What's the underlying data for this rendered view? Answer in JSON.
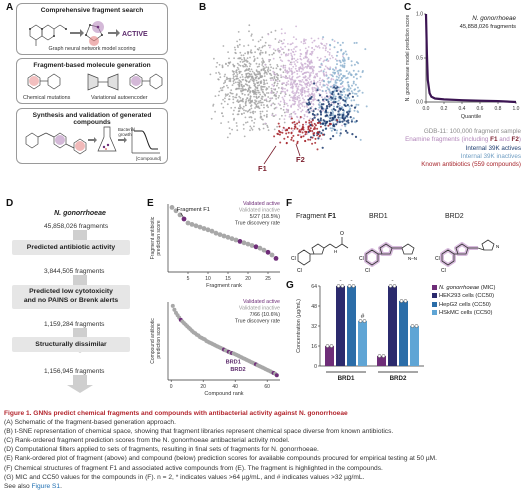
{
  "panelA": {
    "letter": "A",
    "box1_title": "Comprehensive fragment search",
    "box1_sub": "Graph neural network model scoring",
    "active_label": "ACTIVE",
    "box2_title": "Fragment-based molecule generation",
    "box2_sub1": "Chemical mutations",
    "box2_sub2": "Variational autoencoder",
    "box3_title": "Synthesis and validation of generated compounds",
    "growth_label": "Bacterial growth",
    "compound_label": "[Compound]"
  },
  "panelB": {
    "letter": "B",
    "legend": [
      {
        "label": "GDB-11: 100,000 fragment sample",
        "color": "#9b9b9b"
      },
      {
        "label_pre": "Enamine fragments (including ",
        "f1": "F1",
        "and": " and ",
        "f2": "F2",
        "post": ")",
        "color": "#c9a9cf"
      },
      {
        "label": "Internal 39K actives",
        "color": "#1c3b6e"
      },
      {
        "label": "Internal 39K inactives",
        "color": "#8fb3cf"
      },
      {
        "label": "Known antibiotics (559 compounds)",
        "color": "#a6232a"
      }
    ],
    "f1_label": "F1",
    "f2_label": "F2"
  },
  "panelC": {
    "letter": "C",
    "organism": "N. gonorrhoeae",
    "count": "45,858,026 fragments",
    "chart_data": {
      "type": "line",
      "x": [
        0.0,
        0.01,
        0.02,
        0.04,
        0.06,
        0.1,
        0.2,
        0.4,
        0.6,
        0.8,
        1.0
      ],
      "y": [
        1.0,
        0.55,
        0.25,
        0.1,
        0.06,
        0.04,
        0.03,
        0.02,
        0.015,
        0.01,
        0.0
      ],
      "xlabel": "Quantile",
      "ylabel": "N. gonorrhoeae model prediction score",
      "xticks": [
        "0.0",
        "0.2",
        "0.4",
        "0.6",
        "0.8",
        "1.0"
      ],
      "yticks": [
        "0.0",
        "0.5",
        "1.0"
      ],
      "xlim": [
        0,
        1
      ],
      "ylim": [
        0,
        1
      ],
      "color": "#3b1452"
    }
  },
  "panelD": {
    "letter": "D",
    "organism": "N. gonorrhoeae",
    "n0": "45,858,026 fragments",
    "step1": "Predicted antibiotic activity",
    "n1": "3,844,505 fragments",
    "step2_l1": "Predicted low cytotoxicity",
    "step2_l2": "and no PAINS or Brenk alerts",
    "n2": "1,159,284 fragments",
    "step3": "Structurally dissimilar",
    "n3": "1,156,945 fragments"
  },
  "panelE": {
    "letter": "E",
    "top": {
      "legend_active": "Validated active",
      "legend_inactive": "Validated inactive",
      "rate": "5/27 (18.5%)",
      "rate_label": "True discovery rate",
      "annotation": "Fragment F1",
      "chart_data": {
        "type": "scatter",
        "xlabel": "Fragment rank",
        "ylabel": "Fragment antibiotic prediction score",
        "xticks": [
          "5",
          "10",
          "15",
          "20",
          "25"
        ],
        "xlim": [
          0,
          28
        ],
        "ylim": [
          0.0,
          1.0
        ],
        "x": [
          1,
          2,
          3,
          4,
          5,
          6,
          7,
          8,
          9,
          10,
          11,
          12,
          13,
          14,
          15,
          16,
          17,
          18,
          19,
          20,
          21,
          22,
          23,
          24,
          25,
          26,
          27
        ],
        "y": [
          0.95,
          0.9,
          0.84,
          0.78,
          0.72,
          0.7,
          0.68,
          0.66,
          0.64,
          0.62,
          0.6,
          0.57,
          0.55,
          0.53,
          0.51,
          0.49,
          0.47,
          0.45,
          0.43,
          0.41,
          0.39,
          0.37,
          0.35,
          0.32,
          0.29,
          0.25,
          0.2
        ],
        "active": [
          false,
          false,
          false,
          true,
          false,
          false,
          false,
          false,
          false,
          false,
          false,
          false,
          false,
          false,
          false,
          false,
          false,
          true,
          false,
          false,
          false,
          true,
          false,
          false,
          true,
          false,
          true
        ]
      }
    },
    "bottom": {
      "legend_active": "Validated active",
      "legend_inactive": "Validated inactive",
      "rate": "7/66 (10.6%)",
      "rate_label": "True discovery rate",
      "brd1": "BRD1",
      "brd2": "BRD2",
      "chart_data": {
        "type": "scatter",
        "xlabel": "Compound rank",
        "ylabel": "Compound antibiotic prediction score",
        "xticks": [
          "0",
          "20",
          "40",
          "60"
        ],
        "xlim": [
          -2,
          68
        ],
        "ylim": [
          0.0,
          1.0
        ],
        "x": [
          1,
          2,
          3,
          4,
          5,
          6,
          7,
          8,
          9,
          10,
          11,
          12,
          13,
          14,
          15,
          16,
          17,
          18,
          19,
          20,
          21,
          22,
          23,
          24,
          25,
          26,
          27,
          28,
          29,
          30,
          31,
          32,
          33,
          34,
          35,
          36,
          37,
          38,
          39,
          40,
          41,
          42,
          43,
          44,
          45,
          46,
          47,
          48,
          49,
          50,
          51,
          52,
          53,
          54,
          55,
          56,
          57,
          58,
          59,
          60,
          61,
          62,
          63,
          64,
          65,
          66
        ],
        "y": [
          0.95,
          0.9,
          0.86,
          0.83,
          0.8,
          0.77,
          0.75,
          0.73,
          0.71,
          0.69,
          0.67,
          0.65,
          0.63,
          0.61,
          0.6,
          0.58,
          0.57,
          0.55,
          0.54,
          0.53,
          0.52,
          0.5,
          0.49,
          0.48,
          0.47,
          0.46,
          0.45,
          0.44,
          0.43,
          0.42,
          0.41,
          0.4,
          0.39,
          0.38,
          0.37,
          0.36,
          0.35,
          0.345,
          0.34,
          0.33,
          0.32,
          0.31,
          0.3,
          0.29,
          0.28,
          0.27,
          0.26,
          0.25,
          0.24,
          0.23,
          0.22,
          0.21,
          0.2,
          0.19,
          0.18,
          0.17,
          0.16,
          0.15,
          0.14,
          0.13,
          0.12,
          0.11,
          0.1,
          0.09,
          0.08,
          0.06
        ],
        "active": [
          false,
          false,
          false,
          false,
          false,
          true,
          false,
          false,
          false,
          false,
          false,
          false,
          false,
          false,
          false,
          false,
          false,
          false,
          false,
          false,
          false,
          false,
          false,
          false,
          false,
          false,
          false,
          false,
          false,
          false,
          false,
          false,
          true,
          false,
          false,
          true,
          false,
          true,
          false,
          false,
          false,
          false,
          false,
          false,
          false,
          false,
          false,
          false,
          false,
          false,
          false,
          false,
          true,
          false,
          false,
          false,
          false,
          false,
          false,
          false,
          false,
          false,
          false,
          true,
          false,
          true
        ]
      }
    }
  },
  "panelF": {
    "letter": "F",
    "frag_label_pre": "Fragment ",
    "frag_label_bold": "F1",
    "brd1": "BRD1",
    "brd2": "BRD2"
  },
  "panelG": {
    "letter": "G",
    "chart_data": {
      "type": "bar",
      "categories": [
        "BRD1",
        "BRD2"
      ],
      "ylabel": "Concentration (µg/mL)",
      "yticks": [
        "0",
        "16",
        "32",
        "48",
        "64"
      ],
      "ylim": [
        0,
        64
      ],
      "series": [
        {
          "name": "N. gonorrhoeae (MIC)",
          "color": "#6e2d78",
          "values": [
            16,
            8
          ],
          "marks": [
            "",
            ""
          ]
        },
        {
          "name": "HEK293 cells (CC50)",
          "color": "#2b2a6d",
          "values": [
            64,
            64
          ],
          "marks": [
            "*",
            "*"
          ]
        },
        {
          "name": "HepG2 cells (CC50)",
          "color": "#2b6da8",
          "values": [
            64,
            52
          ],
          "marks": [
            "*",
            ""
          ]
        },
        {
          "name": "HSkMC cells (CC50)",
          "color": "#5fa5d5",
          "values": [
            36,
            32
          ],
          "marks": [
            "#",
            ""
          ]
        }
      ]
    },
    "legend": [
      {
        "label_it": "N. gonorrhoeae",
        "label_rest": " (MIC)",
        "color": "#6e2d78"
      },
      {
        "label_it": "",
        "label_rest": "HEK293 cells (CC50)",
        "color": "#2b2a6d"
      },
      {
        "label_it": "",
        "label_rest": "HepG2 cells (CC50)",
        "color": "#2b6da8"
      },
      {
        "label_it": "",
        "label_rest": "HSkMC cells (CC50)",
        "color": "#5fa5d5"
      }
    ],
    "brd1": "BRD1",
    "brd2": "BRD2"
  },
  "caption": {
    "title": "Figure 1. GNNs predict chemical fragments and compounds with antibacterial activity against N. gonorrhoeae",
    "lines": [
      "(A) Schematic of the fragment-based generation approach.",
      "(B) t-SNE representation of chemical space, showing that fragment libraries represent chemical space diverse from known antibiotics.",
      "(C) Rank-ordered fragment prediction scores from the N. gonorrhoeae antibacterial activity model.",
      "(D) Computational filters applied to sets of fragments, resulting in final sets of fragments for N. gonorrhoeae.",
      "(E) Rank-ordered plot of fragment (above) and compound (below) prediction scores for available compounds procured for empirical testing at 50 µM.",
      "(F) Chemical structures of fragment F1 and associated active compounds from (E). The fragment is highlighted in the compounds.",
      "(G) MIC and CC50 values for the compounds in (F). n = 2, * indicates values >64 µg/mL, and # indicates values >32 µg/mL."
    ],
    "see_also": "See also ",
    "see_also_link": "Figure S1",
    "see_also_end": "."
  }
}
